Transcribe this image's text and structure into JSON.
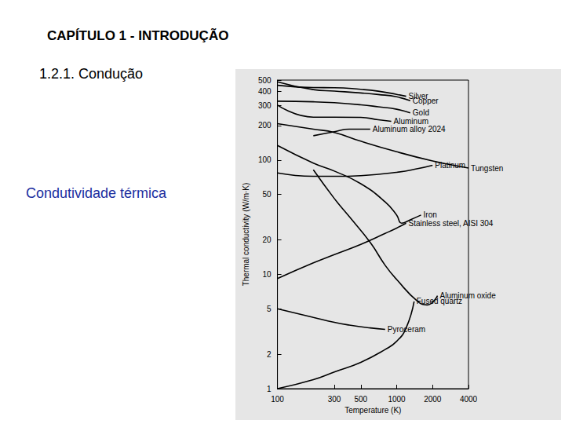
{
  "slide": {
    "header": "CAPÍTULO 1 - INTRODUÇÃO",
    "section": "1.2.1. Condução",
    "caption": "Condutividade térmica"
  },
  "chart_data": {
    "type": "line",
    "x_label": "Temperature (K)",
    "y_label": "Thermal conductivity (W/m·K)",
    "log": true,
    "grid": false,
    "color": "#000000",
    "marker": "none",
    "line_style": "solid",
    "xlim": [
      100,
      4000
    ],
    "xticks": [
      100,
      300,
      500,
      1000,
      2000,
      4000
    ],
    "ylim": [
      1,
      500
    ],
    "yticks": [
      1,
      2,
      5,
      10,
      20,
      50,
      100,
      200,
      300,
      400,
      500
    ],
    "series": [
      {
        "name": "Silver",
        "x": [
          100,
          200,
          300,
          500,
          700,
          1000,
          1200
        ],
        "values": [
          450,
          430,
          429,
          415,
          400,
          375,
          361
        ]
      },
      {
        "name": "Copper",
        "x": [
          100,
          200,
          300,
          500,
          700,
          1000,
          1300
        ],
        "values": [
          482,
          413,
          401,
          386,
          374,
          357,
          330
        ]
      },
      {
        "name": "Gold",
        "x": [
          100,
          200,
          300,
          500,
          700,
          1000,
          1300
        ],
        "values": [
          327,
          323,
          317,
          304,
          292,
          278,
          258
        ]
      },
      {
        "name": "Aluminum",
        "x": [
          100,
          200,
          300,
          500,
          700,
          900
        ],
        "values": [
          302,
          237,
          237,
          236,
          225,
          218
        ]
      },
      {
        "name": "Aluminum alloy 2024",
        "x": [
          200,
          300,
          400,
          500,
          600
        ],
        "values": [
          163,
          177,
          186,
          186,
          186
        ]
      },
      {
        "name": "Tungsten",
        "x": [
          100,
          200,
          300,
          500,
          1000,
          2000,
          3000,
          4000
        ],
        "values": [
          208,
          186,
          174,
          146,
          118,
          98,
          90,
          85
        ]
      },
      {
        "name": "Platinum",
        "x": [
          100,
          200,
          300,
          500,
          1000,
          1500,
          2000
        ],
        "values": [
          77,
          72,
          72,
          73,
          78,
          84,
          90
        ]
      },
      {
        "name": "Iron",
        "x": [
          100,
          200,
          300,
          500,
          800,
          1000,
          1100,
          1300,
          1600
        ],
        "values": [
          134,
          94,
          80,
          62,
          43,
          33,
          28,
          30,
          33
        ]
      },
      {
        "name": "Stainless steel, AISI 304",
        "x": [
          100,
          200,
          300,
          500,
          800,
          1000,
          1200
        ],
        "values": [
          9.2,
          12.6,
          14.9,
          18.3,
          22.8,
          25.4,
          28
        ]
      },
      {
        "name": "Aluminum oxide",
        "x": [
          200,
          300,
          400,
          600,
          800,
          1000,
          1500,
          1800,
          2200
        ],
        "values": [
          82,
          46,
          32,
          19,
          12,
          9,
          5.8,
          5.4,
          6.5
        ]
      },
      {
        "name": "Pyroceram",
        "x": [
          100,
          200,
          300,
          400,
          600,
          800
        ],
        "values": [
          5,
          4.2,
          3.8,
          3.6,
          3.4,
          3.3
        ]
      },
      {
        "name": "Fused quartz",
        "x": [
          100,
          200,
          300,
          500,
          800,
          1000,
          1200,
          1400
        ],
        "values": [
          1.0,
          1.2,
          1.4,
          1.7,
          2.2,
          2.6,
          3.4,
          5.8
        ]
      }
    ]
  }
}
